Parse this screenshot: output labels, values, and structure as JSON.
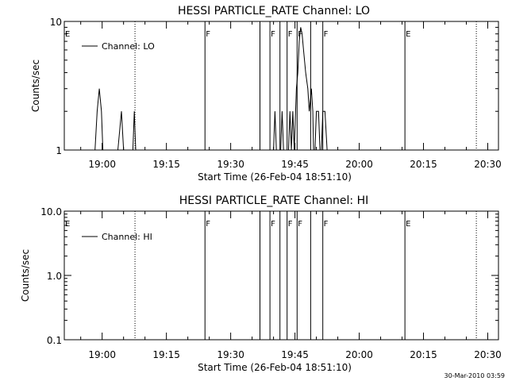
{
  "timestamp": "30-Mar-2010 03:59",
  "chart_data": [
    {
      "type": "line",
      "title": "HESSI PARTICLE_RATE Channel: LO",
      "xlabel": "Start Time (26-Feb-04 18:51:10)",
      "ylabel": "Counts/sec",
      "y_scale": "log",
      "ylim": [
        1,
        10
      ],
      "y_ticks": [
        1,
        10
      ],
      "y_tick_labels": [
        "1",
        "10"
      ],
      "xlim": [
        "18:51:10",
        "20:32:30"
      ],
      "x_ticks": [
        "19:00",
        "19:15",
        "19:30",
        "19:45",
        "20:00",
        "20:15",
        "20:30"
      ],
      "legend": {
        "placement": "top-left",
        "entries": [
          "Channel: LO"
        ]
      },
      "series": [
        {
          "name": "Channel: LO",
          "x": [
            "18:56:00",
            "18:58:20",
            "18:58:50",
            "18:59:20",
            "18:59:50",
            "19:00:10",
            "19:03:00",
            "19:03:20",
            "19:03:40",
            "19:04:30",
            "19:05:00",
            "19:05:10",
            "19:05:30",
            "19:06:00",
            "19:07:10",
            "19:07:30",
            "19:07:50",
            "19:08:30",
            "19:38:20",
            "19:38:50",
            "19:40:00",
            "19:40:20",
            "19:40:40",
            "19:41:40",
            "19:42:00",
            "19:42:20",
            "19:42:40",
            "19:43:30",
            "19:43:50",
            "19:44:10",
            "19:44:30",
            "19:44:50",
            "19:45:20",
            "19:45:40",
            "19:46:00",
            "19:46:20",
            "19:46:40",
            "19:47:00",
            "19:47:30",
            "19:48:00",
            "19:48:20",
            "19:48:50",
            "19:49:10",
            "19:49:20",
            "19:49:40",
            "19:50:00",
            "19:50:10",
            "19:50:30",
            "19:50:50",
            "19:51:10",
            "19:51:30",
            "19:52:00",
            "19:52:30",
            "19:53:00",
            "19:54:00"
          ],
          "values": [
            1,
            1,
            2,
            3,
            2,
            1,
            1,
            1,
            1,
            2,
            1,
            1,
            1,
            1,
            1,
            2,
            1,
            1,
            1,
            1,
            1,
            2,
            1,
            1,
            2,
            1,
            1,
            1,
            2,
            1,
            2,
            1,
            3,
            4,
            7,
            9,
            8,
            6,
            4,
            3,
            2,
            3,
            2,
            1,
            1,
            2,
            2,
            2,
            1,
            1,
            2,
            2,
            1,
            1,
            1
          ]
        }
      ],
      "annotations": [
        {
          "time": "18:51:10",
          "label": "E",
          "line": "none"
        },
        {
          "time": "19:07:40",
          "label": "",
          "line": "dotted"
        },
        {
          "time": "19:24:00",
          "label": "F",
          "line": "solid"
        },
        {
          "time": "19:36:50",
          "label": "",
          "line": "solid"
        },
        {
          "time": "19:39:10",
          "label": "F",
          "line": "solid"
        },
        {
          "time": "19:41:30",
          "label": "",
          "line": "solid"
        },
        {
          "time": "19:43:10",
          "label": "F",
          "line": "solid"
        },
        {
          "time": "19:45:30",
          "label": "F",
          "line": "solid"
        },
        {
          "time": "19:48:40",
          "label": "",
          "line": "solid"
        },
        {
          "time": "19:51:30",
          "label": "F",
          "line": "solid"
        },
        {
          "time": "20:10:40",
          "label": "E",
          "line": "solid"
        },
        {
          "time": "20:27:20",
          "label": "",
          "line": "dotted"
        }
      ]
    },
    {
      "type": "line",
      "title": "HESSI PARTICLE_RATE Channel: HI",
      "xlabel": "Start Time (26-Feb-04 18:51:10)",
      "ylabel": "Counts/sec",
      "y_scale": "log",
      "ylim": [
        0.1,
        10
      ],
      "y_ticks": [
        0.1,
        1,
        10
      ],
      "y_tick_labels": [
        "0.1",
        "1.0",
        "10.0"
      ],
      "xlim": [
        "18:51:10",
        "20:32:30"
      ],
      "x_ticks": [
        "19:00",
        "19:15",
        "19:30",
        "19:45",
        "20:00",
        "20:15",
        "20:30"
      ],
      "legend": {
        "placement": "top-left",
        "entries": [
          "Channel: HI"
        ]
      },
      "series": [
        {
          "name": "Channel: HI",
          "x": [],
          "values": []
        }
      ],
      "annotations": [
        {
          "time": "18:51:10",
          "label": "E",
          "line": "none"
        },
        {
          "time": "19:07:40",
          "label": "",
          "line": "dotted"
        },
        {
          "time": "19:24:00",
          "label": "F",
          "line": "solid"
        },
        {
          "time": "19:36:50",
          "label": "",
          "line": "solid"
        },
        {
          "time": "19:39:10",
          "label": "F",
          "line": "solid"
        },
        {
          "time": "19:41:30",
          "label": "",
          "line": "solid"
        },
        {
          "time": "19:43:10",
          "label": "F",
          "line": "solid"
        },
        {
          "time": "19:45:30",
          "label": "F",
          "line": "solid"
        },
        {
          "time": "19:48:40",
          "label": "",
          "line": "solid"
        },
        {
          "time": "19:51:30",
          "label": "F",
          "line": "solid"
        },
        {
          "time": "20:10:40",
          "label": "E",
          "line": "solid"
        },
        {
          "time": "20:27:20",
          "label": "",
          "line": "dotted"
        }
      ]
    }
  ]
}
